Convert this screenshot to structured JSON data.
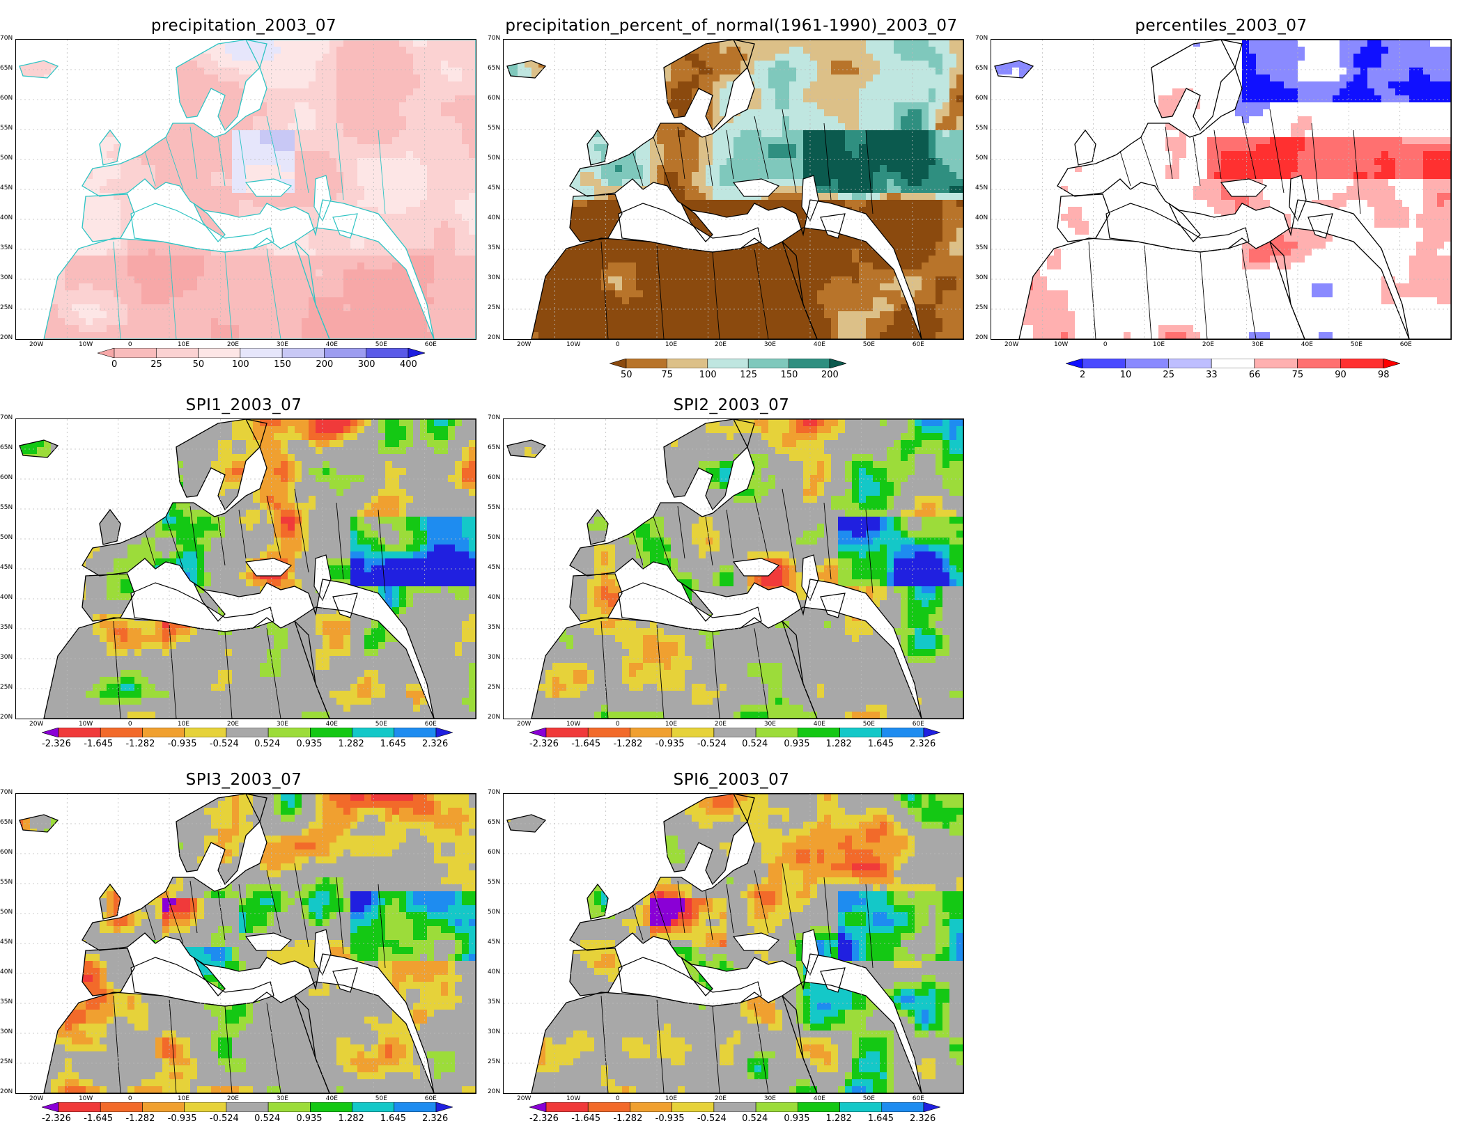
{
  "axis": {
    "lat_labels": [
      "70N",
      "65N",
      "60N",
      "55N",
      "50N",
      "45N",
      "40N",
      "35N",
      "30N",
      "25N",
      "20N"
    ],
    "lon_labels": [
      "20W",
      "10W",
      "0",
      "10E",
      "20E",
      "30E",
      "40E",
      "50E",
      "60E"
    ]
  },
  "panels": [
    {
      "id": "precip",
      "title": "precipitation_2003_07",
      "style": "precip",
      "colorbar_labels": [
        "0",
        "25",
        "50",
        "100",
        "150",
        "200",
        "300",
        "400"
      ],
      "colorbar_colors": [
        "#f7a8a8",
        "#f9bcbc",
        "#fbd2d2",
        "#fde6e6",
        "#e6e6fb",
        "#c8c8f5",
        "#9c9cf0",
        "#5a5ae8",
        "#1e1ee0"
      ]
    },
    {
      "id": "pct",
      "title": "precipitation_percent_of_normal(1961-1990)_2003_07",
      "style": "pct",
      "colorbar_labels": [
        "50",
        "75",
        "100",
        "125",
        "150",
        "200"
      ],
      "colorbar_colors": [
        "#8b4a0e",
        "#b8742a",
        "#dcc088",
        "#bfe6e0",
        "#7fc8bc",
        "#2f8f80",
        "#0b5a4e"
      ]
    },
    {
      "id": "perc",
      "title": "percentiles_2003_07",
      "style": "perc",
      "colorbar_labels": [
        "2",
        "10",
        "25",
        "33",
        "66",
        "75",
        "90",
        "98"
      ],
      "colorbar_colors": [
        "#1010ff",
        "#4a4aff",
        "#8a8aff",
        "#bebeff",
        "#ffffff",
        "#ffb0b0",
        "#ff7070",
        "#ff3030",
        "#ff0000"
      ]
    },
    {
      "id": "spi1",
      "title": "SPI1_2003_07",
      "style": "spi"
    },
    {
      "id": "spi2",
      "title": "SPI2_2003_07",
      "style": "spi"
    },
    {
      "id": "spi3",
      "title": "SPI3_2003_07",
      "style": "spi"
    },
    {
      "id": "spi6",
      "title": "SPI6_2003_07",
      "style": "spi"
    }
  ],
  "spi_colorbar": {
    "labels": [
      "-2.326",
      "-1.645",
      "-1.282",
      "-0.935",
      "-0.524",
      "0.524",
      "0.935",
      "1.282",
      "1.645",
      "2.326"
    ],
    "colors": [
      "#8a00d6",
      "#f03a3a",
      "#f26a2a",
      "#f0a030",
      "#e6d23a",
      "#a8a8a8",
      "#9cdc3a",
      "#14c814",
      "#14c8c8",
      "#1e8cf0",
      "#2020e0"
    ]
  }
}
